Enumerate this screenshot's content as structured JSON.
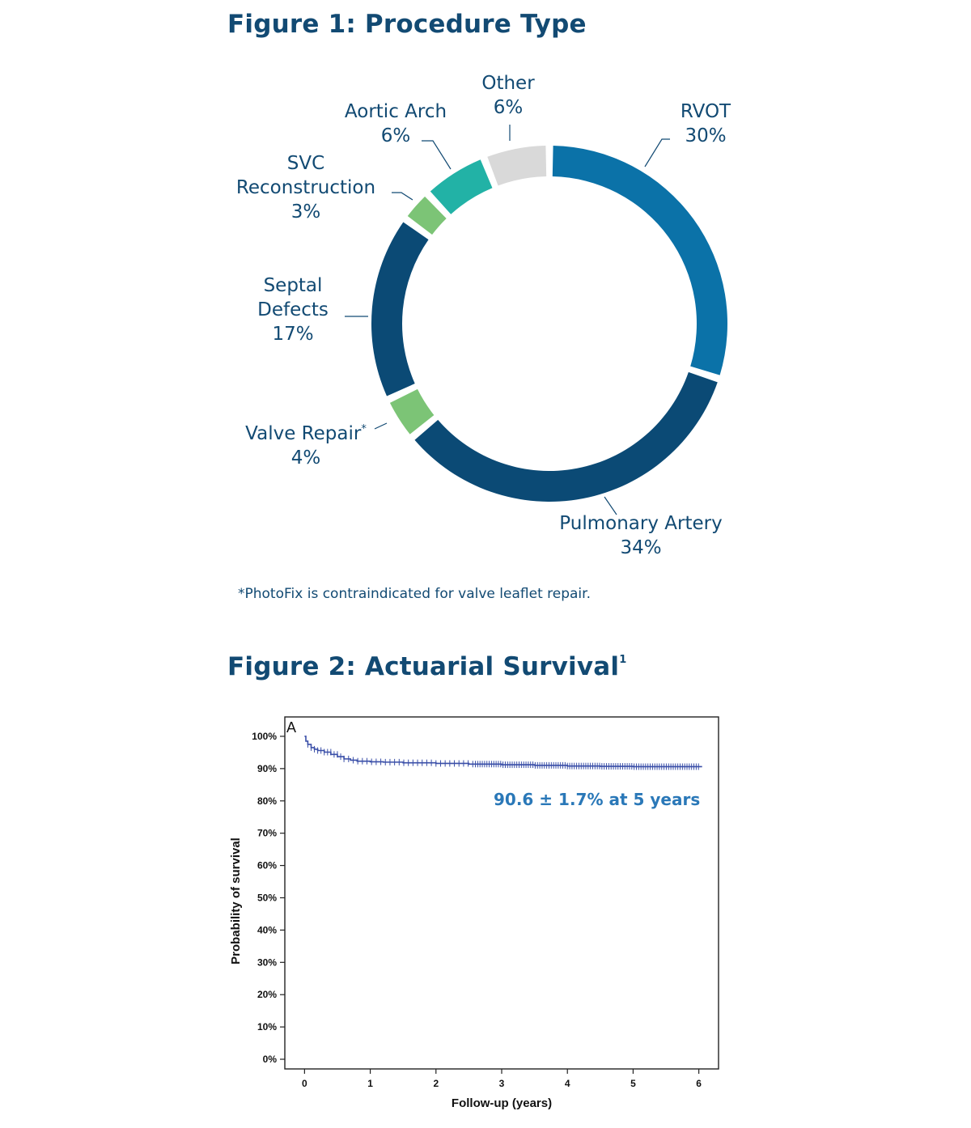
{
  "figure1": {
    "title": "Figure 1:  Procedure Type",
    "footnote": "*PhotoFix is contraindicated for valve leaflet repair.",
    "chart_data": {
      "type": "pie",
      "donut": true,
      "slices": [
        {
          "label_lines": [
            "RVOT",
            "30%"
          ],
          "value": 30,
          "color": "#0b72a8"
        },
        {
          "label_lines": [
            "Pulmonary Artery",
            "34%"
          ],
          "value": 34,
          "color": "#0b4a75"
        },
        {
          "label_lines": [
            "Valve Repair*",
            "4%"
          ],
          "value": 4,
          "color": "#7cc476"
        },
        {
          "label_lines": [
            "Septal",
            "Defects",
            "17%"
          ],
          "value": 17,
          "color": "#0b4a75"
        },
        {
          "label_lines": [
            "SVC",
            "Reconstruction",
            "3%"
          ],
          "value": 3,
          "color": "#7cc476"
        },
        {
          "label_lines": [
            "Aortic Arch",
            "6%"
          ],
          "value": 6,
          "color": "#22b2a6"
        },
        {
          "label_lines": [
            "Other",
            "6%"
          ],
          "value": 6,
          "color": "#d9d9d9"
        }
      ]
    }
  },
  "figure2": {
    "title": "Figure 2:  Actuarial Survival",
    "title_sup": "1",
    "chart_data": {
      "type": "line",
      "panel_label": "A",
      "xlabel": "Follow-up (years)",
      "ylabel": "Probability of survival",
      "xlim": [
        -0.3,
        6.3
      ],
      "ylim": [
        -3,
        106
      ],
      "x_ticks": [
        "0",
        "1",
        "2",
        "3",
        "4",
        "5",
        "6"
      ],
      "y_ticks": [
        "0%",
        "10%",
        "20%",
        "30%",
        "40%",
        "50%",
        "60%",
        "70%",
        "80%",
        "90%",
        "100%"
      ],
      "annotation": "90.6 ± 1.7% at 5 years",
      "line_color": "#3a4fa8",
      "series": [
        {
          "x": [
            0,
            0.02,
            0.05,
            0.1,
            0.15,
            0.2,
            0.3,
            0.4,
            0.5,
            0.6,
            0.7,
            0.8,
            1.0,
            1.2,
            1.5,
            2.0,
            2.5,
            3.0,
            3.5,
            4.0,
            4.5,
            5.0,
            5.5,
            6.05
          ],
          "y": [
            100,
            98.5,
            97.5,
            96.5,
            96.0,
            95.6,
            95.1,
            94.4,
            93.7,
            93.0,
            92.6,
            92.3,
            92.1,
            92.0,
            91.8,
            91.6,
            91.4,
            91.2,
            91.0,
            90.8,
            90.7,
            90.6,
            90.6,
            90.6
          ]
        }
      ]
    }
  }
}
